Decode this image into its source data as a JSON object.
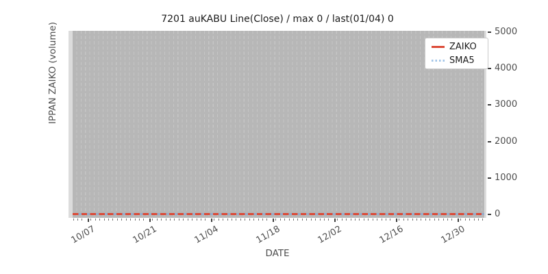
{
  "title": "7201 auKABU Line(Close) / max 0 / last(01/04) 0",
  "axes": {
    "xlabel": "DATE",
    "ylabel": "IPPAN ZAIKO (volume)"
  },
  "legend": {
    "items": [
      {
        "label": "ZAIKO",
        "line_style": "solid",
        "color": "#dc4936"
      },
      {
        "label": "SMA5",
        "line_style": "dotted",
        "color": "#a3c6e8"
      }
    ]
  },
  "colors": {
    "zaiko_line": "#dc4936",
    "sma5_line": "#a3c6e8",
    "plot_background": "#b7b7b7",
    "gridline": "#c6c6c6",
    "axes_padding": "#dcdcdc",
    "tick_text": "#4d4d4d",
    "title_text": "#1a1a1a"
  },
  "chart_data": {
    "type": "line",
    "title": "7201 auKABU Line(Close) / max 0 / last(01/04) 0",
    "xlabel": "DATE",
    "ylabel": "IPPAN ZAIKO (volume)",
    "x_tick_labels": [
      "10/07",
      "10/21",
      "11/04",
      "11/18",
      "12/02",
      "12/16",
      "12/30"
    ],
    "y_tick_labels": [
      "0",
      "1000",
      "2000",
      "3000",
      "4000",
      "5000"
    ],
    "ylim": [
      0,
      5000
    ],
    "x_range_note": "daily dates from early October through 01/04; minor grid/tick per day, major tick every 14 days",
    "grid": "vertical dashed gridlines at every daily minor tick on gray background",
    "legend_position": "upper right",
    "series": [
      {
        "name": "ZAIKO",
        "style": "solid red line",
        "values_summary": "constant 0 for all dates (max 0, last 01/04 = 0)"
      },
      {
        "name": "SMA5",
        "style": "dotted light-blue line",
        "values_summary": "constant 0 for all dates"
      }
    ]
  }
}
